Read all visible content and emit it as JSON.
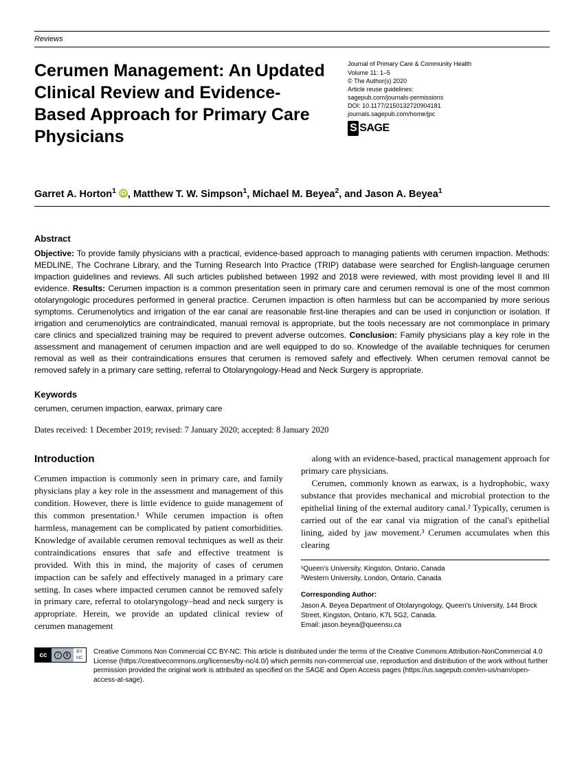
{
  "category": "Reviews",
  "title": "Cerumen Management: An Updated Clinical Review and Evidence-Based Approach for Primary Care Physicians",
  "journal": {
    "name": "Journal of Primary Care & Community Health",
    "volume": "Volume 11: 1–5",
    "copyright": "© The Author(s) 2020",
    "reuse": "Article reuse guidelines:",
    "reuse_url": "sagepub.com/journals-permissions",
    "doi": "DOI: 10.1177/2150132720904181",
    "journal_url": "journals.sagepub.com/home/jpc",
    "publisher": "SAGE"
  },
  "authors_html": "Garret A. Horton<span class='sup'>1</span> <span class='orcid-icon' data-name='orcid-icon' data-interactable='false'>iD</span>, Matthew T. W. Simpson<span class='sup'>1</span>, Michael M. Beyea<span class='sup'>2</span>, and Jason A. Beyea<span class='sup'>1</span>",
  "abstract": {
    "heading": "Abstract",
    "objective_label": "Objective:",
    "objective": " To provide family physicians with a practical, evidence-based approach to managing patients with cerumen impaction. Methods: MEDLINE, The Cochrane Library, and the Turning Research Into Practice (TRIP) database were searched for English-language cerumen impaction guidelines and reviews. All such articles published between 1992 and 2018 were reviewed, with most providing level II and III evidence. ",
    "results_label": "Results:",
    "results": " Cerumen impaction is a common presentation seen in primary care and cerumen removal is one of the most common otolaryngologic procedures performed in general practice. Cerumen impaction is often harmless but can be accompanied by more serious symptoms. Cerumenolytics and irrigation of the ear canal are reasonable first-line therapies and can be used in conjunction or isolation. If irrigation and cerumenolytics are contraindicated, manual removal is appropriate, but the tools necessary are not commonplace in primary care clinics and specialized training may be required to prevent adverse outcomes. ",
    "conclusion_label": "Conclusion:",
    "conclusion": " Family physicians play a key role in the assessment and management of cerumen impaction and are well equipped to do so. Knowledge of the available techniques for cerumen removal as well as their contraindications ensures that cerumen is removed safely and effectively. When cerumen removal cannot be removed safely in a primary care setting, referral to Otolaryngology-Head and Neck Surgery is appropriate."
  },
  "keywords": {
    "heading": "Keywords",
    "text": "cerumen, cerumen impaction, earwax, primary care"
  },
  "dates": "Dates received: 1 December 2019; revised: 7 January 2020; accepted: 8 January 2020",
  "intro": {
    "heading": "Introduction",
    "p1": "Cerumen impaction is commonly seen in primary care, and family physicians play a key role in the assessment and management of this condition. However, there is little evidence to guide management of this common presentation.¹ While cerumen impaction is often harmless, management can be complicated by patient comorbidities. Knowledge of available cerumen removal techniques as well as their contraindications ensures that safe and effective treatment is provided. With this in mind, the majority of cases of cerumen impaction can be safely and effectively managed in a primary care setting. In cases where impacted cerumen cannot be removed safely in primary care, referral to otolaryngology–head and neck surgery is appropriate. Herein, we provide an updated clinical review of cerumen management",
    "p2": "along with an evidence-based, practical management approach for primary care physicians.",
    "p3": "Cerumen, commonly known as earwax, is a hydrophobic, waxy substance that provides mechanical and microbial protection to the epithelial lining of the external auditory canal.² Typically, cerumen is carried out of the ear canal via migration of the canal's epithelial lining, aided by jaw movement.³ Cerumen accumulates when this clearing"
  },
  "affiliations": {
    "a1": "¹Queen's University, Kingston, Ontario, Canada",
    "a2": "²Western University, London, Ontario, Canada",
    "corr_head": "Corresponding Author:",
    "corr_body": "Jason A. Beyea Department of Otolaryngology, Queen's University, 144 Brock Street, Kingston, Ontario, K7L 5G2, Canada.",
    "corr_email": "Email: jason.beyea@queensu.ca"
  },
  "license": "Creative Commons Non Commercial CC BY-NC: This article is distributed under the terms of the Creative Commons Attribution-NonCommercial 4.0 License (https://creativecommons.org/licenses/by-nc/4.0/) which permits non-commercial use, reproduction and distribution of the work without further permission provided the original work is attributed as specified on the SAGE and Open Access pages (https://us.sagepub.com/en-us/nam/open-access-at-sage)."
}
